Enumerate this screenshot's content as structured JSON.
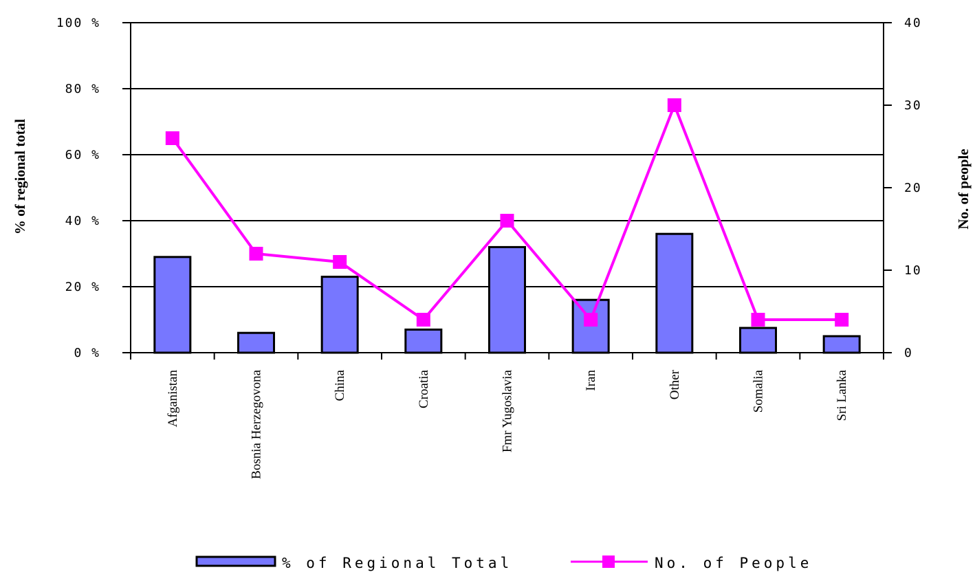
{
  "chart_data": {
    "type": "bar",
    "categories": [
      "Afganistan",
      "Bosnia Herzegovona",
      "China",
      "Croatia",
      "Fmr Yugoslavia",
      "Iran",
      "Other",
      "Somalia",
      "Sri Lanka"
    ],
    "series": [
      {
        "name": "% of Regional Total",
        "type": "bar",
        "axis": "left",
        "values": [
          29,
          6,
          23,
          7,
          32,
          16,
          36,
          7.5,
          5
        ]
      },
      {
        "name": "No. of People",
        "type": "line",
        "axis": "right",
        "values": [
          26,
          12,
          11,
          4,
          16,
          4,
          30,
          4,
          4
        ]
      }
    ],
    "ylabel": "% of regional total",
    "ylabel_right": "No. of people",
    "ylim": [
      0,
      100
    ],
    "ylim_right": [
      0,
      40
    ],
    "yticks": [
      "0 %",
      "20 %",
      "40 %",
      "60 %",
      "80 %",
      "100 %"
    ],
    "yticks_right": [
      "0",
      "10",
      "20",
      "30",
      "40"
    ],
    "grid": true,
    "legend_position": "bottom",
    "colors": {
      "bar": "#7777ff",
      "line": "#ff00ff"
    }
  }
}
